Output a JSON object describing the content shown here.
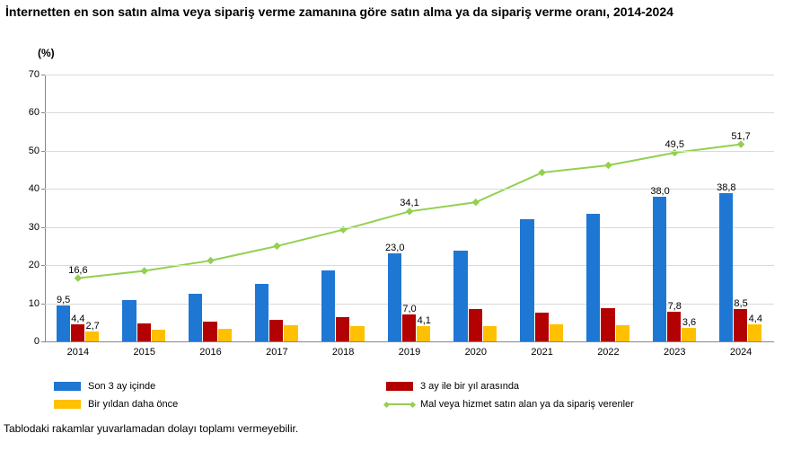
{
  "title": "İnternetten en son satın alma veya sipariş verme zamanına göre satın alma ya da sipariş verme oranı, 2014-2024",
  "y_axis_label": "(%)",
  "footnote": "Tablodaki rakamlar yuvarlamadan dolayı toplamı vermeyebilir.",
  "chart": {
    "type": "grouped-bar-with-line",
    "ylim": [
      0,
      70
    ],
    "ytick_step": 10,
    "background_color": "#ffffff",
    "grid_color": "#d9d9d9",
    "axis_color": "#888888",
    "label_fontsize": 11,
    "title_fontsize": 14,
    "bar_width_ratio": 0.22,
    "categories": [
      "2014",
      "2015",
      "2016",
      "2017",
      "2018",
      "2019",
      "2020",
      "2021",
      "2022",
      "2023",
      "2024"
    ],
    "series": [
      {
        "key": "s3m",
        "name": "Son 3 ay içinde",
        "color": "#1f77d4",
        "type": "bar",
        "values": [
          9.5,
          10.8,
          12.6,
          15.2,
          18.6,
          23.0,
          23.8,
          32.0,
          33.4,
          38.0,
          38.8
        ]
      },
      {
        "key": "s3m1y",
        "name": "3 ay ile bir yıl arasında",
        "color": "#b30000",
        "type": "bar",
        "values": [
          4.4,
          4.8,
          5.1,
          5.6,
          6.4,
          7.0,
          8.6,
          7.6,
          8.7,
          7.8,
          8.5
        ]
      },
      {
        "key": "s1y",
        "name": "Bir yıldan daha önce",
        "color": "#ffc000",
        "type": "bar",
        "values": [
          2.7,
          3.1,
          3.4,
          4.2,
          4.1,
          4.1,
          3.9,
          4.4,
          4.2,
          3.6,
          4.4
        ]
      },
      {
        "key": "total",
        "name": "Mal veya hizmet satın alan ya da sipariş verenler",
        "color": "#92d050",
        "type": "line",
        "values": [
          16.6,
          18.5,
          21.2,
          25.0,
          29.3,
          34.1,
          36.5,
          44.3,
          46.2,
          49.5,
          51.7
        ]
      }
    ],
    "value_labels": [
      {
        "year": "2014",
        "labels": [
          {
            "series": "s3m",
            "text": "9,5"
          },
          {
            "series": "s3m1y",
            "text": "4,4"
          },
          {
            "series": "s1y",
            "text": "2,7"
          },
          {
            "series": "total",
            "text": "16,6"
          }
        ]
      },
      {
        "year": "2019",
        "labels": [
          {
            "series": "s3m",
            "text": "23,0"
          },
          {
            "series": "s3m1y",
            "text": "7,0"
          },
          {
            "series": "s1y",
            "text": "4,1"
          },
          {
            "series": "total",
            "text": "34,1"
          }
        ]
      },
      {
        "year": "2023",
        "labels": [
          {
            "series": "s3m",
            "text": "38,0"
          },
          {
            "series": "s3m1y",
            "text": "7,8"
          },
          {
            "series": "s1y",
            "text": "3,6"
          },
          {
            "series": "total",
            "text": "49,5"
          }
        ]
      },
      {
        "year": "2024",
        "labels": [
          {
            "series": "s3m",
            "text": "38,8"
          },
          {
            "series": "s3m1y",
            "text": "8,5"
          },
          {
            "series": "s1y",
            "text": "4,4"
          },
          {
            "series": "total",
            "text": "51,7"
          }
        ]
      }
    ]
  },
  "legend": {
    "items": [
      {
        "series": "s3m"
      },
      {
        "series": "s3m1y"
      },
      {
        "series": "s1y"
      },
      {
        "series": "total"
      }
    ]
  }
}
